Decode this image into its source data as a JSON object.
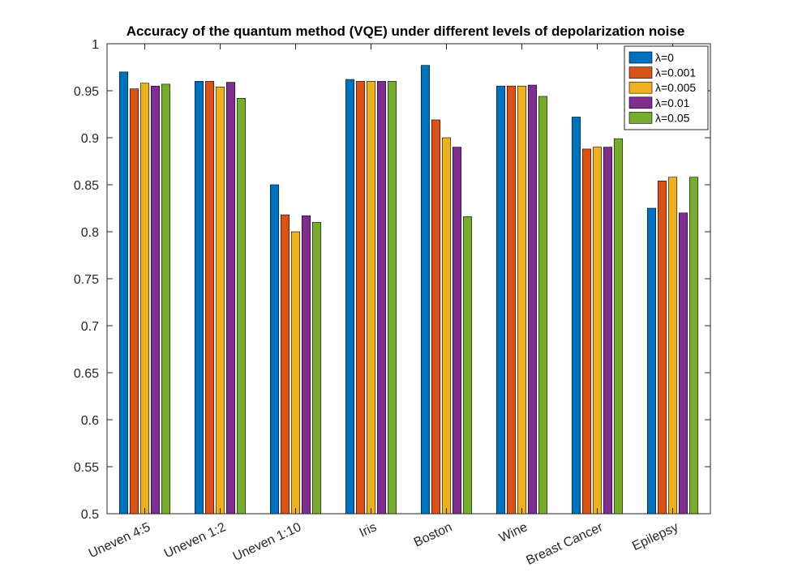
{
  "chart_data": {
    "type": "bar",
    "title": "Accuracy of the quantum method (VQE) under different levels of depolarization noise",
    "xlabel": "",
    "ylabel": "",
    "ylim": [
      0.5,
      1
    ],
    "yticks": [
      "0.5",
      "0.55",
      "0.6",
      "0.65",
      "0.7",
      "0.75",
      "0.8",
      "0.85",
      "0.9",
      "0.95",
      "1"
    ],
    "grid": false,
    "legend_position": "top-right",
    "categories": [
      "Uneven 4:5",
      "Uneven 1:2",
      "Uneven 1:10",
      "Iris",
      "Boston",
      "Wine",
      "Breast Cancer",
      "Epilepsy"
    ],
    "series": [
      {
        "name": "λ=0",
        "color": "#0072BD",
        "values": [
          0.97,
          0.96,
          0.85,
          0.962,
          0.977,
          0.955,
          0.922,
          0.825
        ]
      },
      {
        "name": "λ=0.001",
        "color": "#D95319",
        "values": [
          0.952,
          0.96,
          0.818,
          0.96,
          0.919,
          0.955,
          0.888,
          0.854
        ]
      },
      {
        "name": "λ=0.005",
        "color": "#EDB120",
        "values": [
          0.958,
          0.954,
          0.8,
          0.96,
          0.9,
          0.955,
          0.89,
          0.858
        ]
      },
      {
        "name": "λ=0.01",
        "color": "#7E2F8E",
        "values": [
          0.955,
          0.959,
          0.817,
          0.96,
          0.89,
          0.956,
          0.89,
          0.82
        ]
      },
      {
        "name": "λ=0.05",
        "color": "#77AC30",
        "values": [
          0.957,
          0.942,
          0.81,
          0.96,
          0.816,
          0.944,
          0.899,
          0.858
        ]
      }
    ]
  }
}
